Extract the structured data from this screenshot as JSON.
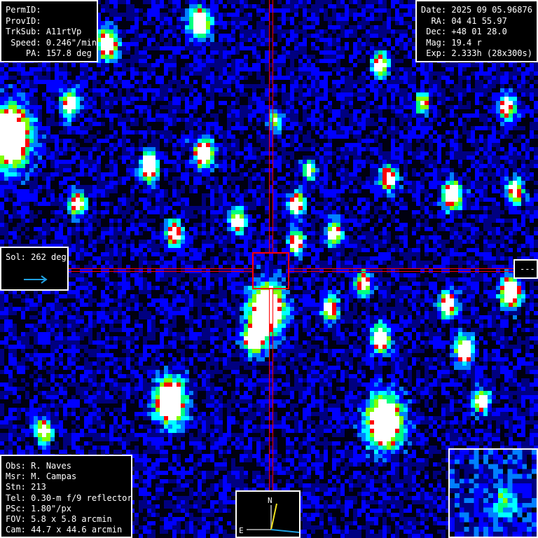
{
  "target_info": {
    "rows": [
      {
        "label": "PermID:",
        "value": ""
      },
      {
        "label": "ProvID:",
        "value": ""
      },
      {
        "label": "TrkSub:",
        "value": "A11rtVp"
      },
      {
        "label": " Speed:",
        "value": "0.246\"/min"
      },
      {
        "label": "    PA:",
        "value": "157.8 deg"
      }
    ]
  },
  "observation_info": {
    "rows": [
      {
        "label": "Date:",
        "value": "2025 09 05.96876"
      },
      {
        "label": "  RA:",
        "value": "04 41 55.97"
      },
      {
        "label": " Dec:",
        "value": "+48 01 28.0"
      },
      {
        "label": " Mag:",
        "value": "19.4 r"
      },
      {
        "label": " Exp:",
        "value": "2.333h (28x300s)"
      }
    ]
  },
  "observer_info": {
    "rows": [
      {
        "label": "Obs:",
        "value": "R. Naves"
      },
      {
        "label": "Msr:",
        "value": "M. Campas"
      },
      {
        "label": "Stn:",
        "value": "213"
      },
      {
        "label": "Tel:",
        "value": "0.30-m f/9 reflector"
      },
      {
        "label": "PSc:",
        "value": "1.80\"/px"
      },
      {
        "label": "FOV:",
        "value": "5.8 x 5.8 arcmin"
      },
      {
        "label": "Cam:",
        "value": "44.7 x 44.6 arcmin"
      }
    ]
  },
  "sol_panel": {
    "label": "Sol:",
    "value": "262 deg",
    "arrow_icon": "arrow-right-icon"
  },
  "side_marker": {
    "label": "---"
  },
  "compass": {
    "north_label": "N",
    "east_label": "E"
  },
  "colors": {
    "crosshair": "#ff0000",
    "panel_border": "#ffffff",
    "motion_vector": "#f0e020",
    "sun_vector": "#20a0e0",
    "palette": [
      "#000010",
      "#000080",
      "#0000ff",
      "#0080ff",
      "#00ffff",
      "#00ff80",
      "#80ff00",
      "#ff0000",
      "#ffffff"
    ]
  }
}
